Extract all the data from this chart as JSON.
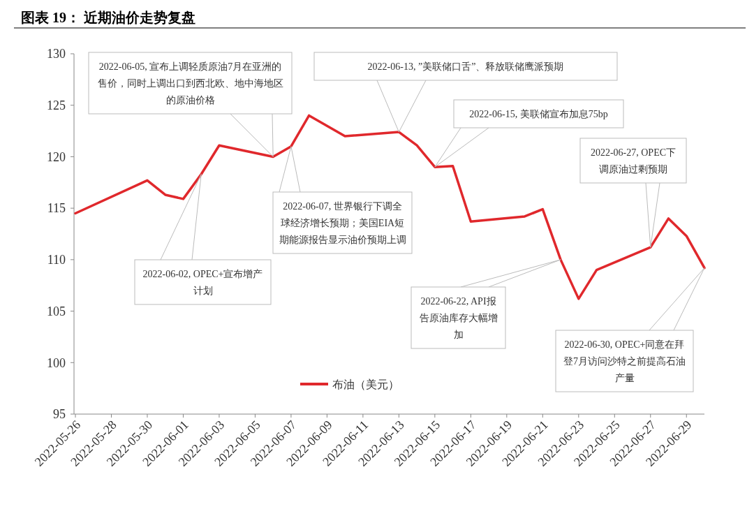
{
  "chart_data": {
    "type": "line",
    "title": "图表 19：  近期油价走势复盘",
    "x": [
      "2022-05-26",
      "2022-05-30",
      "2022-05-31",
      "2022-06-01",
      "2022-06-02",
      "2022-06-03",
      "2022-06-06",
      "2022-06-07",
      "2022-06-08",
      "2022-06-10",
      "2022-06-13",
      "2022-06-14",
      "2022-06-15",
      "2022-06-16",
      "2022-06-17",
      "2022-06-20",
      "2022-06-21",
      "2022-06-22",
      "2022-06-23",
      "2022-06-24",
      "2022-06-27",
      "2022-06-28",
      "2022-06-29",
      "2022-06-30"
    ],
    "series": [
      {
        "name": "布油（美元）",
        "color": "#e0282c",
        "values": [
          114.5,
          117.7,
          116.3,
          115.9,
          118.3,
          121.1,
          120.0,
          121.0,
          124.0,
          122.0,
          122.4,
          121.1,
          119.0,
          119.1,
          113.7,
          114.2,
          114.9,
          110.0,
          106.2,
          109.0,
          111.2,
          114.0,
          112.3,
          109.2
        ]
      }
    ],
    "xlim": [
      "2022-05-26",
      "2022-06-30"
    ],
    "xticks": [
      "2022-05-26",
      "2022-05-28",
      "2022-05-30",
      "2022-06-01",
      "2022-06-03",
      "2022-06-05",
      "2022-06-07",
      "2022-06-09",
      "2022-06-11",
      "2022-06-13",
      "2022-06-15",
      "2022-06-17",
      "2022-06-19",
      "2022-06-21",
      "2022-06-23",
      "2022-06-25",
      "2022-06-27",
      "2022-06-29"
    ],
    "ylim": [
      95,
      130
    ],
    "yticks": [
      95,
      100,
      105,
      110,
      115,
      120,
      125,
      130
    ],
    "grid": false,
    "legend": "bottom",
    "marker": "none",
    "line_style": "solid",
    "annotations": [
      {
        "text": "2022-06-05, 宣布上调轻质原油7月在亚洲的售价，同时上调出口到西北欧、地中海地区的原油价格",
        "x": "2022-06-06",
        "y": 120.0
      },
      {
        "text": "2022-06-13, ”美联储口舌”、释放联储鹰派预期",
        "x": "2022-06-13",
        "y": 122.4
      },
      {
        "text": "2022-06-15, 美联储宣布加息75bp",
        "x": "2022-06-15",
        "y": 119.0
      },
      {
        "text": "2022-06-27, OPEC下调原油过剩预期",
        "x": "2022-06-27",
        "y": 111.2
      },
      {
        "text": "2022-06-07, 世界银行下调全球经济增长预期；美国EIA短期能源报告显示油价预期上调",
        "x": "2022-06-07",
        "y": 121.0
      },
      {
        "text": "2022-06-02, OPEC+宣布增产计划",
        "x": "2022-06-02",
        "y": 118.3
      },
      {
        "text": "2022-06-22, API报告原油库存大幅增加",
        "x": "2022-06-22",
        "y": 110.0
      },
      {
        "text": "2022-06-30, OPEC+同意在拜登7月访问沙特之前提高石油产量",
        "x": "2022-06-30",
        "y": 109.2
      }
    ]
  }
}
